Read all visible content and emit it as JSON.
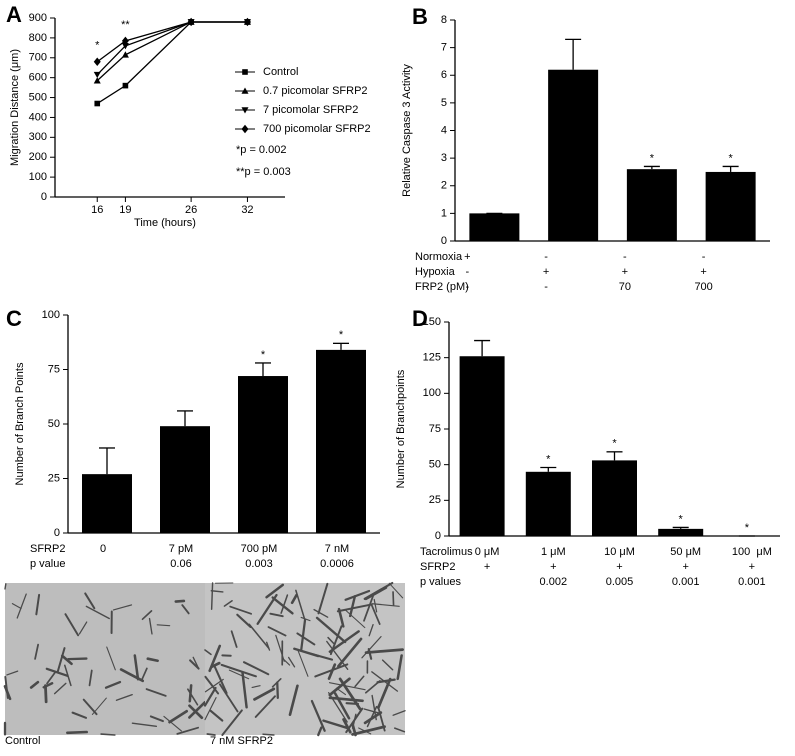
{
  "chart_data": [
    {
      "type": "line",
      "panel_label": "A",
      "xlabel": "Time (hours)",
      "ylabel": "Migration Distance (μm)",
      "x": [
        16,
        19,
        26,
        32
      ],
      "xlim": [
        11.5,
        36
      ],
      "xticks": [
        16,
        19,
        26,
        32
      ],
      "ylim": [
        0,
        900
      ],
      "yticks": [
        0,
        100,
        200,
        300,
        400,
        500,
        600,
        700,
        800,
        900
      ],
      "series": [
        {
          "name": "Control",
          "color": "#000000",
          "marker": "square",
          "values": [
            470,
            560,
            880,
            880
          ]
        },
        {
          "name": "0.7 picomolar SFRP2",
          "color": "#000000",
          "marker": "triangle",
          "values": [
            585,
            715,
            880,
            880
          ]
        },
        {
          "name": "7 picomolar SFRP2",
          "color": "#000000",
          "marker": "triangle-down",
          "values": [
            615,
            760,
            880,
            880
          ]
        },
        {
          "name": "700 picomolar SFRP2",
          "color": "#000000",
          "marker": "diamond",
          "values": [
            680,
            785,
            880,
            880
          ]
        }
      ],
      "significance": [
        "*",
        "**",
        null,
        null
      ],
      "notes": [
        "*p = 0.002",
        "**p = 0.003"
      ]
    },
    {
      "type": "bar",
      "panel_label": "B",
      "ylabel": "Relative Caspase 3 Activity",
      "color": "#000000",
      "values": [
        1,
        6.2,
        2.6,
        2.5
      ],
      "errors": [
        0,
        1.1,
        0.1,
        0.2
      ],
      "significance": [
        null,
        null,
        "*",
        "*"
      ],
      "ylim": [
        0,
        8
      ],
      "yticks": [
        0,
        1,
        2,
        3,
        4,
        5,
        6,
        7,
        8
      ],
      "table": {
        "rows": [
          {
            "label": "Normoxia",
            "cells": [
              "+",
              "-",
              "-",
              "-"
            ]
          },
          {
            "label": "Hypoxia",
            "cells": [
              "-",
              "+",
              "+",
              "+"
            ]
          },
          {
            "label": "FRP2 (pM)",
            "cells": [
              "-",
              "-",
              "70",
              "700"
            ]
          }
        ]
      }
    },
    {
      "type": "bar",
      "panel_label": "C",
      "ylabel": "Number of Branch Points",
      "color": "#000000",
      "values": [
        27,
        49,
        72,
        84
      ],
      "errors": [
        12,
        7,
        6,
        3
      ],
      "significance": [
        null,
        null,
        "*",
        "*"
      ],
      "ylim": [
        0,
        100
      ],
      "yticks": [
        0,
        25,
        50,
        75,
        100
      ],
      "table": {
        "rows": [
          {
            "label": "SFRP2",
            "cells": [
              "0",
              "7 pM",
              "700 pM",
              "7 nM"
            ]
          },
          {
            "label": "p value",
            "cells": [
              null,
              "0.06",
              "0.003",
              "0.0006"
            ]
          }
        ]
      }
    },
    {
      "type": "bar",
      "panel_label": "D",
      "ylabel": "Number of Branchpoints",
      "color": "#000000",
      "values": [
        126,
        45,
        53,
        5,
        0
      ],
      "errors": [
        11,
        3,
        6,
        1,
        0
      ],
      "significance": [
        null,
        "*",
        "*",
        "*",
        "*"
      ],
      "ylim": [
        0,
        150
      ],
      "yticks": [
        0,
        25,
        50,
        75,
        100,
        125,
        150
      ],
      "table": {
        "rows": [
          {
            "label": "Tacrolimus",
            "cells": [
              "0 μM",
              "1 μM",
              "10 μM",
              "50 μM",
              "100  μM"
            ]
          },
          {
            "label": "SFRP2",
            "cells": [
              "+",
              "+",
              "+",
              "+",
              "+"
            ]
          },
          {
            "label": "p values",
            "cells": [
              null,
              "0.002",
              "0.005",
              "0.001",
              "0.001"
            ]
          }
        ]
      }
    }
  ],
  "images": {
    "captions": [
      "Control",
      "7 nM SFRP2"
    ]
  }
}
